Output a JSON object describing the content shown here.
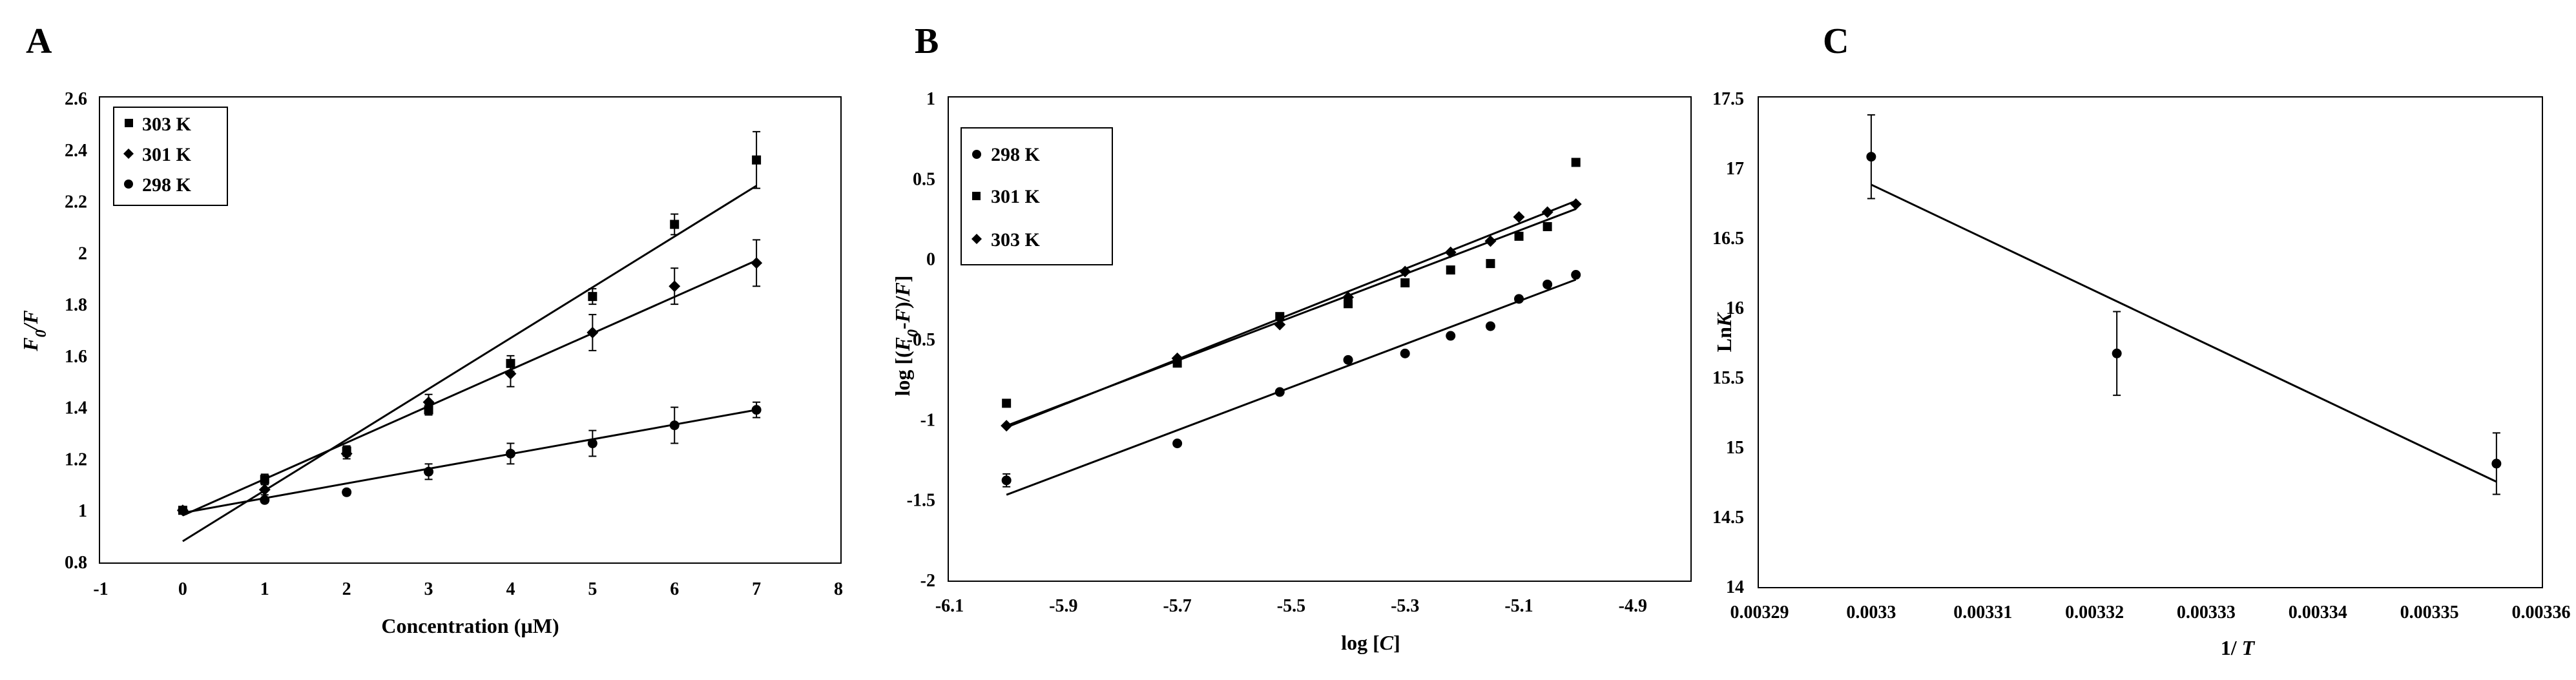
{
  "chart_data": [
    {
      "panel": "A",
      "type": "scatter",
      "xlabel": "Concentration  (µM)",
      "ylabel_parts": [
        "F",
        "0",
        "/F"
      ],
      "xlim": [
        -1,
        8
      ],
      "ylim": [
        0.8,
        2.6
      ],
      "xticks": [
        -1,
        0,
        1,
        2,
        3,
        4,
        5,
        6,
        7,
        8
      ],
      "yticks": [
        0.8,
        1,
        1.2,
        1.4,
        1.6,
        1.8,
        2,
        2.2,
        2.4,
        2.6
      ],
      "grid": false,
      "legend_position": "top-left",
      "series": [
        {
          "name": "303 K",
          "marker": "square",
          "x": [
            0,
            1,
            2,
            3,
            4,
            5,
            6,
            7
          ],
          "y": [
            1.0,
            1.12,
            1.23,
            1.39,
            1.57,
            1.83,
            2.11,
            2.36
          ],
          "error": [
            0.01,
            0.02,
            0.02,
            0.02,
            0.03,
            0.03,
            0.04,
            0.11
          ],
          "fit": {
            "x": [
              0,
              7
            ],
            "y": [
              0.88,
              2.26
            ]
          }
        },
        {
          "name": "301 K",
          "marker": "diamond",
          "x": [
            0,
            1,
            2,
            3,
            4,
            5,
            6,
            7
          ],
          "y": [
            1.0,
            1.08,
            1.22,
            1.42,
            1.53,
            1.69,
            1.87,
            1.96
          ],
          "error": [
            0.01,
            0.02,
            0.02,
            0.03,
            0.05,
            0.07,
            0.07,
            0.09
          ],
          "fit": {
            "x": [
              0,
              7
            ],
            "y": [
              0.98,
              1.97
            ]
          }
        },
        {
          "name": "298 K",
          "marker": "circle",
          "x": [
            0,
            1,
            2,
            3,
            4,
            5,
            6,
            7
          ],
          "y": [
            1.0,
            1.04,
            1.07,
            1.15,
            1.22,
            1.26,
            1.33,
            1.39
          ],
          "error": [
            0.01,
            0.01,
            0.01,
            0.03,
            0.04,
            0.05,
            0.07,
            0.03
          ],
          "fit": {
            "x": [
              0,
              7
            ],
            "y": [
              0.99,
              1.39
            ]
          }
        }
      ]
    },
    {
      "panel": "B",
      "type": "scatter",
      "xlabel_parts": [
        "log [",
        "C",
        "]"
      ],
      "ylabel_parts": [
        "log [(",
        "F",
        "0",
        "-",
        "F",
        ")/",
        "F",
        "]"
      ],
      "xlim": [
        -6.1,
        -4.8
      ],
      "ylim": [
        -2,
        1
      ],
      "xticks": [
        -6.1,
        -5.9,
        -5.7,
        -5.5,
        -5.3,
        -5.1,
        -4.9
      ],
      "yticks": [
        -2,
        -1.5,
        -1,
        -0.5,
        0,
        0.5,
        1
      ],
      "grid": false,
      "legend_position": "top-left",
      "series": [
        {
          "name": "298 K",
          "marker": "circle",
          "x": [
            -6.0,
            -5.7,
            -5.52,
            -5.4,
            -5.3,
            -5.22,
            -5.15,
            -5.1,
            -5.05,
            -5.0
          ],
          "y": [
            -1.38,
            -1.15,
            -0.83,
            -0.63,
            -0.59,
            -0.48,
            -0.42,
            -0.25,
            -0.16,
            -0.1
          ],
          "error": [
            0.04,
            0,
            0,
            0,
            0,
            0,
            0,
            0,
            0,
            0
          ],
          "fit": {
            "x": [
              -6.0,
              -5.0
            ],
            "y": [
              -1.47,
              -0.13
            ]
          }
        },
        {
          "name": "301 K",
          "marker": "square",
          "x": [
            -6.0,
            -5.7,
            -5.52,
            -5.4,
            -5.3,
            -5.22,
            -5.15,
            -5.1,
            -5.05,
            -5.0
          ],
          "y": [
            -0.9,
            -0.65,
            -0.36,
            -0.28,
            -0.15,
            -0.07,
            -0.03,
            0.14,
            0.2,
            0.6
          ],
          "error": [
            0,
            0,
            0,
            0,
            0,
            0,
            0,
            0,
            0,
            0
          ],
          "fit": {
            "x": [
              -6.0,
              -5.0
            ],
            "y": [
              -1.04,
              0.31
            ]
          }
        },
        {
          "name": "303 K",
          "marker": "diamond",
          "x": [
            -6.0,
            -5.7,
            -5.52,
            -5.4,
            -5.3,
            -5.22,
            -5.15,
            -5.1,
            -5.05,
            -5.0
          ],
          "y": [
            -1.04,
            -0.62,
            -0.41,
            -0.24,
            -0.08,
            0.04,
            0.11,
            0.26,
            0.29,
            0.34
          ],
          "error": [
            0,
            0,
            0,
            0,
            0,
            0,
            0,
            0,
            0,
            0
          ],
          "fit": {
            "x": [
              -6.0,
              -5.0
            ],
            "y": [
              -1.05,
              0.36
            ]
          }
        }
      ]
    },
    {
      "panel": "C",
      "type": "scatter",
      "xlabel_parts": [
        "1/ ",
        "T"
      ],
      "ylabel_parts": [
        "Ln",
        "K"
      ],
      "xlim": [
        0.00329,
        0.00336
      ],
      "ylim": [
        14,
        17.5
      ],
      "xticks": [
        "0.00329",
        "0.0033",
        "0.00331",
        "0.00332",
        "0.00333",
        "0.00334",
        "0.00335",
        "0.00336"
      ],
      "yticks": [
        "14",
        "14.5",
        "15",
        "15.5",
        "16",
        "16.5",
        "17",
        "17.5"
      ],
      "grid": false,
      "series": [
        {
          "marker": "circle",
          "x": [
            0.0033,
            0.003322,
            0.003356
          ],
          "y": [
            17.08,
            15.67,
            14.88
          ],
          "error": [
            0.3,
            0.3,
            0.22
          ],
          "fit": {
            "x": [
              0.0033,
              0.003356
            ],
            "y": [
              16.88,
              14.75
            ]
          }
        }
      ]
    }
  ]
}
